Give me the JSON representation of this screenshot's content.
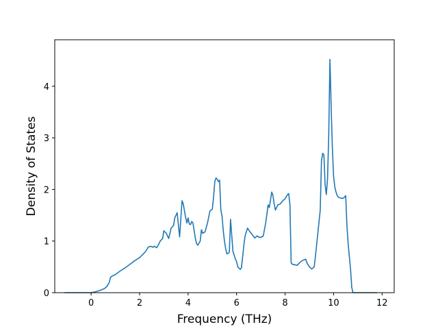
{
  "chart_data": {
    "type": "line",
    "title": "",
    "xlabel": "Frequency (THz)",
    "ylabel": "Density of States",
    "xlim": [
      -1.5,
      12.5
    ],
    "ylim": [
      0,
      4.9
    ],
    "grid": false,
    "xticks": [
      0,
      2,
      4,
      6,
      8,
      10,
      12
    ],
    "yticks": [
      0,
      1,
      2,
      3,
      4
    ],
    "series": [
      {
        "color": "#1f77b4",
        "x": [
          -1.1,
          0.0,
          0.2,
          0.4,
          0.55,
          0.65,
          0.75,
          0.8,
          0.9,
          1.0,
          1.2,
          1.4,
          1.6,
          1.8,
          2.0,
          2.15,
          2.25,
          2.35,
          2.45,
          2.55,
          2.6,
          2.7,
          2.8,
          2.85,
          2.95,
          3.0,
          3.1,
          3.2,
          3.3,
          3.4,
          3.45,
          3.55,
          3.65,
          3.75,
          3.8,
          3.9,
          3.95,
          4.0,
          4.05,
          4.1,
          4.15,
          4.2,
          4.3,
          4.35,
          4.4,
          4.5,
          4.55,
          4.6,
          4.7,
          4.8,
          4.9,
          5.0,
          5.05,
          5.1,
          5.15,
          5.2,
          5.25,
          5.3,
          5.35,
          5.4,
          5.45,
          5.5,
          5.55,
          5.6,
          5.7,
          5.75,
          5.85,
          5.95,
          6.0,
          6.05,
          6.15,
          6.2,
          6.3,
          6.35,
          6.45,
          6.55,
          6.65,
          6.75,
          6.85,
          6.9,
          7.0,
          7.1,
          7.2,
          7.3,
          7.35,
          7.45,
          7.5,
          7.55,
          7.6,
          7.65,
          7.7,
          7.8,
          7.9,
          8.0,
          8.1,
          8.15,
          8.2,
          8.25,
          8.3,
          8.5,
          8.6,
          8.7,
          8.85,
          8.9,
          9.0,
          9.1,
          9.2,
          9.25,
          9.35,
          9.45,
          9.5,
          9.55,
          9.6,
          9.65,
          9.7,
          9.75,
          9.8,
          9.85,
          9.9,
          9.95,
          10.0,
          10.05,
          10.1,
          10.15,
          10.2,
          10.3,
          10.4,
          10.45,
          10.5,
          10.55,
          10.6,
          10.7,
          10.75,
          10.8,
          10.9,
          11.1,
          11.3,
          11.5,
          11.8
        ],
        "y": [
          0.0,
          0.0,
          0.02,
          0.05,
          0.08,
          0.12,
          0.2,
          0.3,
          0.33,
          0.35,
          0.42,
          0.48,
          0.55,
          0.62,
          0.68,
          0.75,
          0.8,
          0.88,
          0.9,
          0.88,
          0.9,
          0.87,
          0.95,
          1.0,
          1.05,
          1.2,
          1.15,
          1.05,
          1.25,
          1.3,
          1.45,
          1.55,
          1.08,
          1.78,
          1.72,
          1.45,
          1.35,
          1.45,
          1.33,
          1.32,
          1.38,
          1.35,
          1.05,
          0.95,
          0.92,
          1.0,
          1.22,
          1.15,
          1.18,
          1.35,
          1.58,
          1.62,
          1.85,
          2.15,
          2.22,
          2.2,
          2.15,
          2.18,
          1.6,
          1.48,
          1.2,
          1.0,
          0.85,
          0.75,
          0.78,
          1.42,
          0.8,
          0.65,
          0.6,
          0.5,
          0.45,
          0.48,
          0.92,
          1.1,
          1.25,
          1.18,
          1.12,
          1.06,
          1.1,
          1.08,
          1.07,
          1.1,
          1.35,
          1.7,
          1.65,
          1.95,
          1.88,
          1.72,
          1.6,
          1.65,
          1.7,
          1.72,
          1.78,
          1.82,
          1.9,
          1.92,
          1.7,
          0.58,
          0.55,
          0.53,
          0.58,
          0.62,
          0.65,
          0.58,
          0.5,
          0.46,
          0.5,
          0.7,
          1.15,
          1.6,
          2.55,
          2.7,
          2.67,
          2.1,
          1.9,
          2.2,
          3.05,
          4.52,
          3.6,
          2.8,
          2.25,
          2.05,
          1.95,
          1.88,
          1.85,
          1.83,
          1.83,
          1.85,
          1.88,
          1.3,
          0.95,
          0.45,
          0.1,
          0.0,
          0.0,
          0.0,
          0.0,
          0.0,
          0.0
        ]
      }
    ]
  }
}
